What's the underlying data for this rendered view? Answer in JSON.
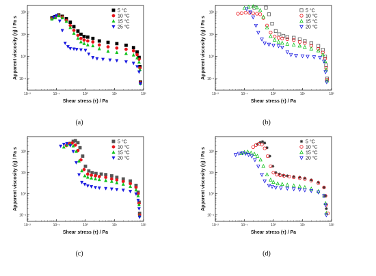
{
  "chart_data": [
    {
      "type": "scatter",
      "panel_label": "(a)",
      "xlabel": "Shear stress (τ) / Pa",
      "ylabel": "Apparent viscosity (η) / Pa s",
      "xscale": "log",
      "yscale": "log",
      "xlim": [
        0.01,
        100
      ],
      "ylim": [
        0.03,
        200
      ],
      "x_ticks": [
        {
          "v": 0.01,
          "label": "10⁻²"
        },
        {
          "v": 0.1,
          "label": "10⁻¹"
        },
        {
          "v": 1,
          "label": "10⁰"
        },
        {
          "v": 10,
          "label": "10¹"
        },
        {
          "v": 100,
          "label": "10²"
        }
      ],
      "y_ticks": [
        {
          "v": 0.1,
          "label": "10⁻¹"
        },
        {
          "v": 1,
          "label": "10⁰"
        },
        {
          "v": 10,
          "label": "10¹"
        },
        {
          "v": 100,
          "label": "10²"
        }
      ],
      "legend_position": "top-right",
      "series": [
        {
          "name": "5 °C",
          "marker": "square-filled",
          "color": "#000000",
          "x": [
            0.07,
            0.09,
            0.12,
            0.16,
            0.22,
            0.3,
            0.4,
            0.55,
            0.7,
            0.9,
            1.2,
            1.8,
            3,
            6,
            12,
            25,
            45,
            60,
            70,
            75,
            78
          ],
          "y": [
            55,
            62,
            75,
            65,
            50,
            35,
            22,
            14,
            10,
            8,
            7.5,
            6.5,
            5,
            4.3,
            3.8,
            3.2,
            2.5,
            1.6,
            0.9,
            0.35,
            0.07
          ]
        },
        {
          "name": "10 °C",
          "marker": "circle-filled",
          "color": "#e8141b",
          "x": [
            0.07,
            0.09,
            0.12,
            0.16,
            0.22,
            0.3,
            0.4,
            0.55,
            0.7,
            0.9,
            1.2,
            1.8,
            3,
            6,
            12,
            25,
            45,
            60,
            70,
            75,
            78
          ],
          "y": [
            50,
            58,
            72,
            60,
            42,
            25,
            15,
            9,
            6.5,
            5.5,
            5,
            4.5,
            3.3,
            2.7,
            2.4,
            2.1,
            1.8,
            1.2,
            0.75,
            0.3,
            0.065
          ]
        },
        {
          "name": "15 °C",
          "marker": "triangle-up-filled",
          "color": "#10c21c",
          "x": [
            0.07,
            0.09,
            0.12,
            0.16,
            0.22,
            0.3,
            0.4,
            0.55,
            0.7,
            0.9,
            1.2,
            1.8,
            3,
            6,
            12,
            25,
            45,
            60,
            70,
            75,
            78
          ],
          "y": [
            48,
            55,
            68,
            55,
            38,
            20,
            11,
            6.5,
            4.5,
            3.8,
            3.3,
            3,
            2.2,
            1.7,
            1.5,
            1.35,
            1.15,
            0.85,
            0.55,
            0.25,
            0.06
          ]
        },
        {
          "name": "25 °C",
          "marker": "triangle-down-filled",
          "color": "#1a1ae0",
          "x": [
            0.08,
            0.1,
            0.13,
            0.16,
            0.2,
            0.25,
            0.3,
            0.4,
            0.5,
            0.7,
            1,
            1.3,
            1.8,
            2.5,
            4,
            7,
            12,
            25,
            45,
            60,
            70,
            78
          ],
          "y": [
            60,
            70,
            40,
            15,
            4,
            2.8,
            2.3,
            2.2,
            2.1,
            2.0,
            1.9,
            1.3,
            0.9,
            0.8,
            0.75,
            0.7,
            0.65,
            0.58,
            0.5,
            0.35,
            0.2,
            0.06
          ]
        }
      ]
    },
    {
      "type": "scatter",
      "panel_label": "(b)",
      "xlabel": "Shear stress (τ) / Pa",
      "ylabel": "Apparent viscosity (η) / Pa s",
      "xscale": "log",
      "yscale": "log",
      "xlim": [
        0.01,
        100
      ],
      "ylim": [
        0.03,
        200
      ],
      "x_ticks": [
        {
          "v": 0.01,
          "label": "10⁻²"
        },
        {
          "v": 0.1,
          "label": "10⁻¹"
        },
        {
          "v": 1,
          "label": "10⁰"
        },
        {
          "v": 10,
          "label": "10¹"
        },
        {
          "v": 100,
          "label": "10²"
        }
      ],
      "y_ticks": [
        {
          "v": 0.1,
          "label": "10⁻¹"
        },
        {
          "v": 1,
          "label": "10⁰"
        },
        {
          "v": 10,
          "label": "10¹"
        },
        {
          "v": 100,
          "label": "10²"
        }
      ],
      "legend_position": "top-right",
      "series": [
        {
          "name": "5 °C",
          "marker": "square-open",
          "color": "#555555",
          "x": [
            0.22,
            0.28,
            0.35,
            0.45,
            0.55,
            0.7,
            0.9,
            1.2,
            1.6,
            2.2,
            3,
            5,
            8,
            12,
            20,
            35,
            50,
            60,
            65,
            70
          ],
          "y": [
            160,
            210,
            230,
            220,
            160,
            80,
            30,
            14,
            10,
            8.5,
            7.5,
            7,
            6,
            5,
            4,
            3,
            2,
            1,
            0.4,
            0.1
          ]
        },
        {
          "name": "10 °C",
          "marker": "circle-open",
          "color": "#e8141b",
          "x": [
            0.06,
            0.08,
            0.11,
            0.15,
            0.2,
            0.27,
            0.35,
            0.45,
            0.6,
            0.8,
            1.1,
            1.5,
            2,
            3,
            5,
            8,
            12,
            20,
            35,
            50,
            60,
            65,
            70
          ],
          "y": [
            85,
            90,
            95,
            92,
            88,
            85,
            80,
            55,
            25,
            12,
            8,
            7,
            6.5,
            6,
            5.5,
            4.5,
            4,
            3,
            2.2,
            1.5,
            0.8,
            0.3,
            0.09
          ]
        },
        {
          "name": "15 °C",
          "marker": "triangle-up-open",
          "color": "#10c21c",
          "x": [
            0.1,
            0.14,
            0.2,
            0.27,
            0.35,
            0.45,
            0.6,
            0.8,
            1.1,
            1.5,
            2,
            3,
            5,
            8,
            12,
            20,
            35,
            50,
            60,
            65,
            70
          ],
          "y": [
            150,
            170,
            180,
            160,
            120,
            60,
            20,
            8,
            5.5,
            4.5,
            4,
            3.6,
            3.3,
            3,
            2.6,
            2.2,
            1.8,
            1.2,
            0.6,
            0.25,
            0.08
          ]
        },
        {
          "name": "20 °C",
          "marker": "triangle-down-open",
          "color": "#1a1ae0",
          "x": [
            0.12,
            0.16,
            0.2,
            0.25,
            0.3,
            0.4,
            0.5,
            0.7,
            1,
            1.5,
            2,
            3,
            4,
            6,
            10,
            15,
            25,
            40,
            55,
            62,
            68
          ],
          "y": [
            140,
            100,
            60,
            25,
            12,
            6,
            4,
            3.5,
            3.2,
            3,
            2.6,
            1.6,
            1.2,
            1.1,
            1.05,
            1,
            0.95,
            0.9,
            0.6,
            0.2,
            0.07
          ]
        }
      ]
    },
    {
      "type": "scatter",
      "panel_label": "(c)",
      "xlabel": "Shear stress (τ) / Pa",
      "ylabel": "Apparent viscosity (η) / Pa s",
      "xscale": "log",
      "yscale": "log",
      "xlim": [
        0.01,
        100
      ],
      "ylim": [
        0.05,
        500
      ],
      "x_ticks": [
        {
          "v": 0.01,
          "label": "10⁻²"
        },
        {
          "v": 0.1,
          "label": "10⁻¹"
        },
        {
          "v": 1,
          "label": "10⁰"
        },
        {
          "v": 10,
          "label": "10¹"
        },
        {
          "v": 100,
          "label": "10²"
        }
      ],
      "y_ticks": [
        {
          "v": 0.1,
          "label": "10⁻¹"
        },
        {
          "v": 1,
          "label": "10⁰"
        },
        {
          "v": 10,
          "label": "10¹"
        },
        {
          "v": 100,
          "label": "10²"
        }
      ],
      "legend_position": "top-right",
      "series": [
        {
          "name": "5 °C",
          "marker": "square-filled",
          "color": "#555555",
          "x": [
            0.3,
            0.38,
            0.45,
            0.55,
            0.65,
            0.8,
            1,
            1.3,
            1.7,
            2.3,
            3.5,
            5,
            8,
            12,
            20,
            35,
            55,
            65,
            70,
            73
          ],
          "y": [
            240,
            300,
            320,
            260,
            150,
            60,
            20,
            12,
            10,
            9,
            8.5,
            8,
            7,
            6,
            5,
            4,
            2.5,
            1.2,
            0.4,
            0.12
          ]
        },
        {
          "name": "10 °C",
          "marker": "circle-filled",
          "color": "#e8141b",
          "x": [
            0.22,
            0.28,
            0.35,
            0.45,
            0.55,
            0.7,
            0.9,
            1.2,
            1.6,
            2.2,
            3,
            5,
            8,
            12,
            20,
            35,
            55,
            65,
            70,
            73
          ],
          "y": [
            190,
            230,
            250,
            200,
            110,
            40,
            14,
            8.5,
            7.5,
            7,
            6.5,
            6,
            5,
            4.5,
            3.8,
            3,
            2,
            1,
            0.35,
            0.1
          ]
        },
        {
          "name": "15 °C",
          "marker": "triangle-up-filled",
          "color": "#10c21c",
          "x": [
            0.18,
            0.23,
            0.3,
            0.38,
            0.48,
            0.6,
            0.75,
            0.95,
            1.2,
            1.6,
            2.2,
            3,
            5,
            8,
            12,
            20,
            35,
            55,
            65,
            70,
            73
          ],
          "y": [
            160,
            200,
            220,
            180,
            100,
            35,
            12,
            7,
            6,
            5.5,
            5,
            4.6,
            4.2,
            3.8,
            3.3,
            2.8,
            2.2,
            1.5,
            0.8,
            0.3,
            0.09
          ]
        },
        {
          "name": "20 °C",
          "marker": "triangle-down-filled",
          "color": "#1a1ae0",
          "x": [
            0.14,
            0.18,
            0.23,
            0.3,
            0.38,
            0.48,
            0.6,
            0.75,
            0.95,
            1.2,
            1.6,
            2.2,
            3,
            5,
            8,
            12,
            20,
            35,
            55,
            65,
            70,
            73
          ],
          "y": [
            180,
            220,
            240,
            190,
            100,
            30,
            8,
            3.5,
            2.8,
            2.4,
            2.2,
            2,
            1.9,
            1.8,
            1.7,
            1.6,
            1.5,
            1.3,
            1,
            0.5,
            0.2,
            0.08
          ]
        }
      ]
    },
    {
      "type": "scatter",
      "panel_label": "(d)",
      "xlabel": "Shear stress (τ) / Pa",
      "ylabel": "Apparent viscosity (η) / Pa s",
      "xscale": "log",
      "yscale": "log",
      "xlim": [
        0.01,
        100
      ],
      "ylim": [
        0.05,
        500
      ],
      "x_ticks": [
        {
          "v": 0.01,
          "label": "10⁻²"
        },
        {
          "v": 0.1,
          "label": "10⁻¹"
        },
        {
          "v": 1,
          "label": "10⁰"
        },
        {
          "v": 10,
          "label": "10¹"
        },
        {
          "v": 100,
          "label": "10²"
        }
      ],
      "y_ticks": [
        {
          "v": 0.1,
          "label": "10⁻¹"
        },
        {
          "v": 1,
          "label": "10⁰"
        },
        {
          "v": 10,
          "label": "10¹"
        },
        {
          "v": 100,
          "label": "10²"
        }
      ],
      "legend_position": "top-right",
      "series": [
        {
          "name": "5 °C",
          "marker": "asterisk",
          "color": "#333333",
          "x": [
            0.28,
            0.35,
            0.42,
            0.5,
            0.6,
            0.75,
            0.95,
            1.2,
            1.6,
            2.2,
            3,
            5,
            8,
            12,
            20,
            35,
            55,
            62,
            66
          ],
          "y": [
            220,
            270,
            290,
            250,
            150,
            60,
            20,
            10,
            8.5,
            7.5,
            7,
            6.5,
            6,
            5.5,
            4.5,
            3.5,
            2,
            0.8,
            0.2
          ]
        },
        {
          "name": "10 °C",
          "marker": "circle-open",
          "color": "#e8141b",
          "x": [
            0.2,
            0.25,
            0.32,
            0.4,
            0.5,
            0.63,
            0.8,
            1,
            1.3,
            1.7,
            2.3,
            3.5,
            5,
            8,
            12,
            20,
            35,
            55,
            62,
            66,
            75
          ],
          "y": [
            160,
            200,
            230,
            210,
            140,
            60,
            20,
            10,
            8,
            7.5,
            7,
            6.5,
            6,
            5.5,
            5,
            4.2,
            3.2,
            2,
            0.8,
            0.3,
            0.12
          ]
        },
        {
          "name": "15 °C",
          "marker": "triangle-up-open",
          "color": "#10c21c",
          "x": [
            0.08,
            0.1,
            0.13,
            0.17,
            0.22,
            0.28,
            0.36,
            0.45,
            0.6,
            0.8,
            1,
            1.4,
            2,
            3,
            5,
            8,
            12,
            20,
            35,
            55,
            62,
            66
          ],
          "y": [
            80,
            90,
            95,
            85,
            75,
            60,
            40,
            20,
            8,
            4.5,
            3.5,
            3,
            2.8,
            2.6,
            2.4,
            2.2,
            2,
            1.7,
            1.3,
            0.8,
            0.35,
            0.12
          ]
        },
        {
          "name": "20 °C",
          "marker": "triangle-down-open",
          "color": "#1a1ae0",
          "x": [
            0.05,
            0.065,
            0.085,
            0.11,
            0.14,
            0.18,
            0.23,
            0.3,
            0.4,
            0.5,
            0.7,
            0.9,
            1.2,
            1.8,
            3,
            5,
            8,
            12,
            20,
            35,
            55,
            62,
            66
          ],
          "y": [
            70,
            80,
            85,
            80,
            70,
            60,
            40,
            20,
            8,
            4,
            2.5,
            2.2,
            2,
            1.9,
            1.8,
            1.7,
            1.6,
            1.5,
            1.4,
            1.2,
            0.8,
            0.3,
            0.1
          ]
        }
      ]
    }
  ]
}
